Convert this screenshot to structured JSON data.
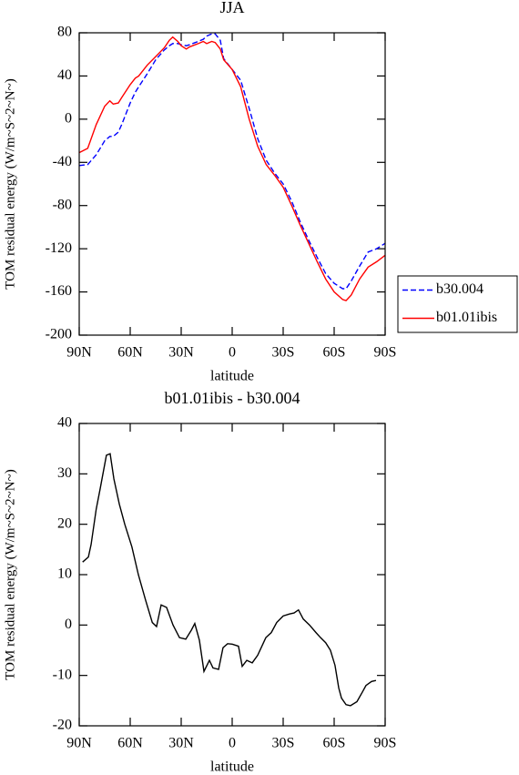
{
  "chart_data": [
    {
      "type": "line",
      "title": "JJA",
      "xlabel": "latitude",
      "ylabel": "TOM residual energy (W/m~S~2~N~)",
      "x": [
        90,
        85,
        80,
        75,
        72,
        70,
        67,
        65,
        60,
        57,
        55,
        50,
        45,
        40,
        37,
        35,
        32,
        30,
        27,
        25,
        20,
        17,
        15,
        12,
        10,
        7,
        5,
        0,
        -5,
        -10,
        -15,
        -20,
        -25,
        -30,
        -35,
        -40,
        -45,
        -50,
        -55,
        -60,
        -65,
        -67,
        -70,
        -75,
        -80,
        -85,
        -90
      ],
      "series": [
        {
          "name": "b30.004",
          "color": "#0000ff",
          "dashed": true,
          "values": [
            -43,
            -42,
            -33,
            -20,
            -16,
            -16,
            -12,
            -5,
            15,
            25,
            30,
            42,
            55,
            64,
            68,
            70,
            70,
            69,
            68,
            69,
            72,
            74,
            77,
            79,
            79,
            73,
            56,
            46,
            36,
            10,
            -18,
            -38,
            -50,
            -60,
            -76,
            -95,
            -112,
            -128,
            -143,
            -152,
            -157,
            -157,
            -150,
            -136,
            -123,
            -120,
            -115
          ]
        },
        {
          "name": "b01.01ibis",
          "color": "#ff0000",
          "dashed": false,
          "values": [
            -31,
            -27,
            -5,
            12,
            17,
            14,
            15,
            20,
            32,
            38,
            40,
            50,
            58,
            66,
            73,
            76,
            72,
            68,
            65,
            67,
            70,
            72,
            70,
            72,
            71,
            65,
            55,
            46,
            30,
            0,
            -25,
            -42,
            -52,
            -63,
            -80,
            -98,
            -115,
            -132,
            -148,
            -160,
            -167,
            -168,
            -163,
            -148,
            -137,
            -132,
            -126
          ]
        }
      ],
      "xlim": [
        90,
        -90
      ],
      "xticks": [
        {
          "value": 90,
          "label": "90N"
        },
        {
          "value": 60,
          "label": "60N"
        },
        {
          "value": 30,
          "label": "30N"
        },
        0,
        {
          "value": -30,
          "label": "30S"
        },
        {
          "value": -60,
          "label": "60S"
        },
        {
          "value": -90,
          "label": "90S"
        }
      ],
      "ylim": [
        -200,
        80
      ],
      "yticks": [
        -200,
        -160,
        -120,
        -80,
        -40,
        0,
        40,
        80
      ],
      "legend": "right"
    },
    {
      "type": "line",
      "title": "b01.01ibis - b30.004",
      "xlabel": "latitude",
      "ylabel": "TOM residual energy (W/m~S~2~N~)",
      "x": [
        88,
        84.6,
        83,
        80,
        77.7,
        74,
        71.8,
        69.6,
        66.4,
        63.2,
        59,
        55.2,
        51,
        47,
        44.5,
        41.8,
        38.6,
        34.8,
        31,
        27.3,
        24,
        22,
        19.3,
        16.6,
        13.4,
        11.3,
        8,
        5.4,
        2.7,
        0,
        -3.7,
        -5.9,
        -8.6,
        -11.8,
        -15,
        -19.8,
        -23,
        -26.2,
        -30,
        -33.7,
        -36.4,
        -39,
        -41.8,
        -45.5,
        -49.3,
        -52,
        -55,
        -57.8,
        -60.5,
        -62.7,
        -64.3,
        -67,
        -69.6,
        -73.4,
        -76.6,
        -78.7,
        -82,
        -84.6
      ],
      "series": [
        {
          "color": "#000000",
          "dashed": false,
          "values": [
            12.5,
            13.5,
            16,
            23,
            27,
            33.7,
            34,
            29,
            24,
            20,
            15.5,
            10,
            5,
            0.5,
            -0.3,
            4,
            3.5,
            0,
            -2.5,
            -2.8,
            -1,
            0.3,
            -3,
            -9.2,
            -7,
            -8.5,
            -8.8,
            -4.5,
            -3.7,
            -3.8,
            -4.2,
            -8.2,
            -7,
            -7.5,
            -6,
            -2.5,
            -1.5,
            0.5,
            1.8,
            2.2,
            2.4,
            3,
            1.2,
            0,
            -1.5,
            -2.5,
            -3.5,
            -5,
            -8,
            -12.5,
            -14.5,
            -15.8,
            -16,
            -15.2,
            -13.3,
            -12,
            -11.2,
            -11
          ]
        }
      ],
      "xlim": [
        90,
        -90
      ],
      "xticks": [
        {
          "value": 90,
          "label": "90N"
        },
        {
          "value": 60,
          "label": "60N"
        },
        {
          "value": 30,
          "label": "30N"
        },
        0,
        {
          "value": -30,
          "label": "30S"
        },
        {
          "value": -60,
          "label": "60S"
        },
        {
          "value": -90,
          "label": "90S"
        }
      ],
      "ylim": [
        -20,
        40
      ],
      "yticks": [
        -20,
        -10,
        0,
        10,
        20,
        30,
        40
      ]
    }
  ]
}
